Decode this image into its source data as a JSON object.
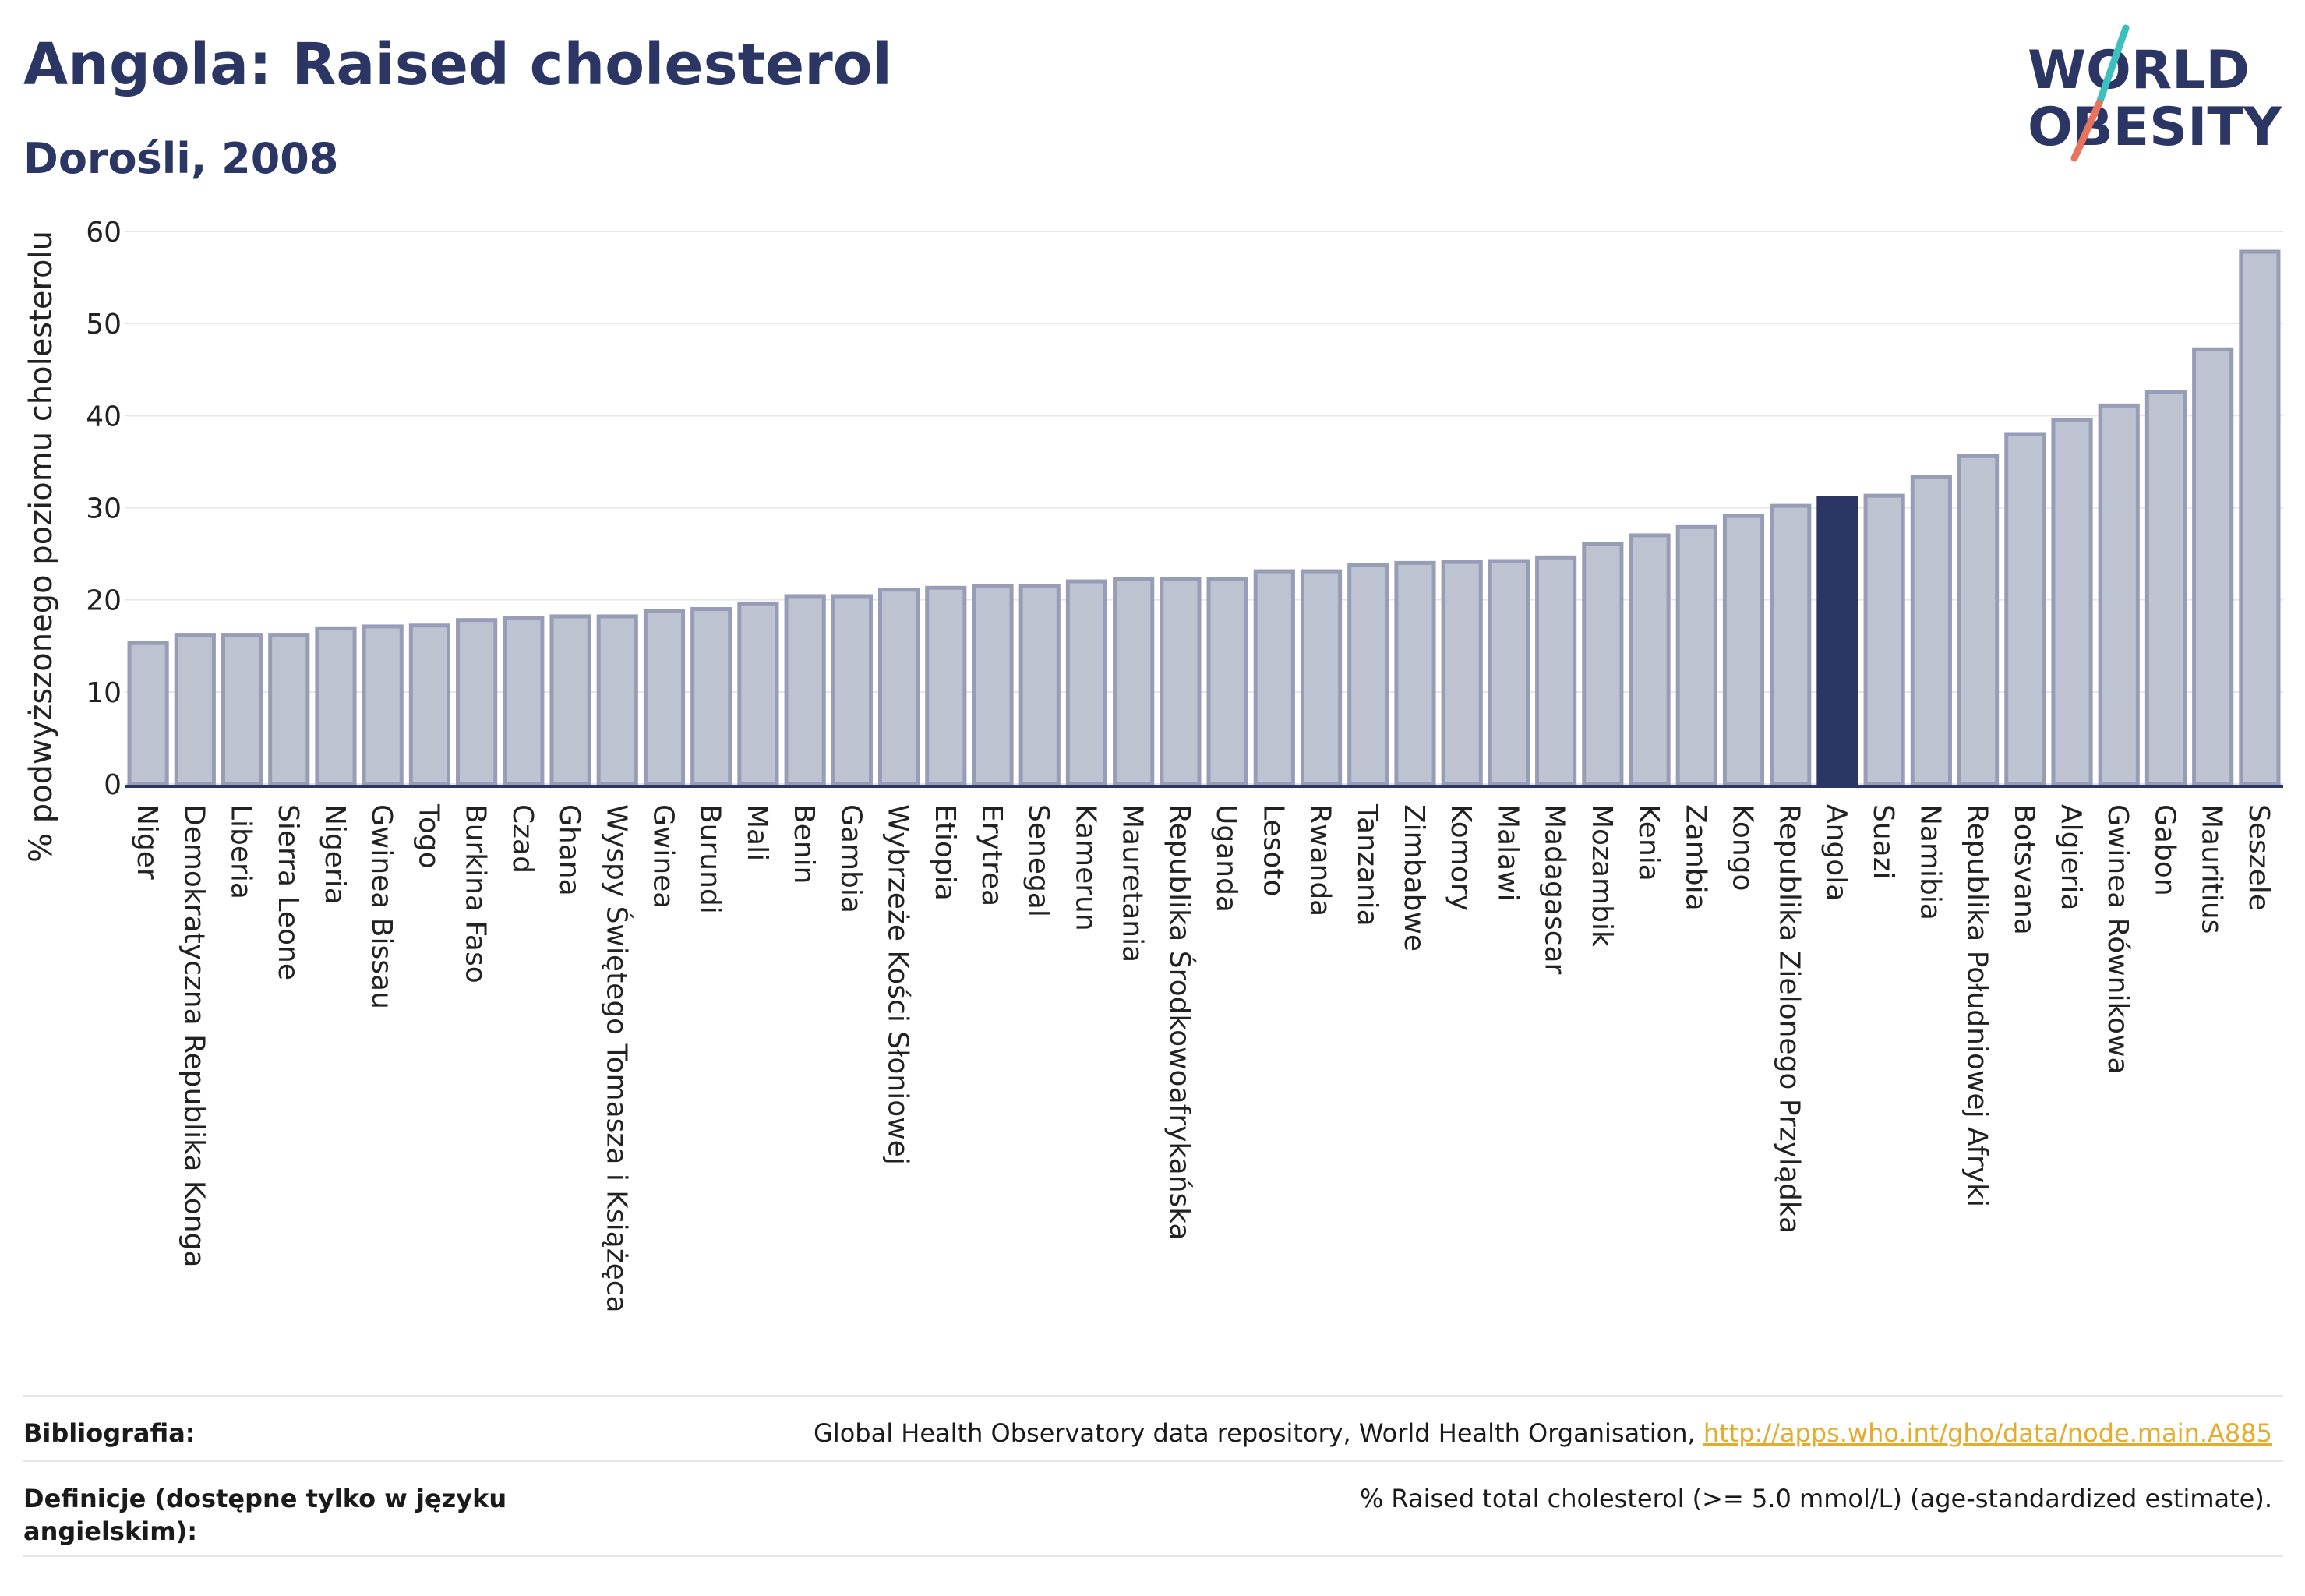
{
  "title": "Angola: Raised cholesterol",
  "subtitle": "Dorośli, 2008",
  "logo": {
    "line1": "WORLD",
    "line2": "OBESITY",
    "colors": [
      "#2b3664",
      "#3dbfbf",
      "#e8735e"
    ]
  },
  "colors": {
    "bar": "#bec3d2",
    "bar_border": "#979db6",
    "highlight": "#2b3664",
    "grid": "#e6e6e6",
    "title": "#2b3664",
    "link": "#e3ac2e"
  },
  "chart_data": {
    "type": "bar",
    "title": "Angola: Raised cholesterol",
    "subtitle": "Dorośli, 2008",
    "ylabel": "% podwyższonego poziomu cholesterolu",
    "xlabel": "",
    "ylim": [
      0,
      60
    ],
    "yticks": [
      0,
      10,
      20,
      30,
      40,
      50,
      60
    ],
    "grid": true,
    "highlight": "Angola",
    "categories": [
      "Niger",
      "Demokratyczna Republika Konga",
      "Liberia",
      "Sierra Leone",
      "Nigeria",
      "Gwinea Bissau",
      "Togo",
      "Burkina Faso",
      "Czad",
      "Ghana",
      "Wyspy Świętego Tomasza i Książęca",
      "Gwinea",
      "Burundi",
      "Mali",
      "Benin",
      "Gambia",
      "Wybrzeże Kości Słoniowej",
      "Etiopia",
      "Erytrea",
      "Senegal",
      "Kamerun",
      "Mauretania",
      "Republika Środkowoafrykańska",
      "Uganda",
      "Lesoto",
      "Rwanda",
      "Tanzania",
      "Zimbabwe",
      "Komory",
      "Malawi",
      "Madagascar",
      "Mozambik",
      "Kenia",
      "Zambia",
      "Kongo",
      "Republika Zielonego Przylądka",
      "Angola",
      "Suazi",
      "Namibia",
      "Republika Południowej Afryki",
      "Botsvana",
      "Algieria",
      "Gwinea Równikowa",
      "Gabon",
      "Mauritius",
      "Seszele"
    ],
    "values": [
      15.3,
      16.2,
      16.2,
      16.2,
      16.9,
      17.1,
      17.2,
      17.8,
      18.0,
      18.2,
      18.2,
      18.8,
      19.0,
      19.6,
      20.4,
      20.4,
      21.1,
      21.3,
      21.5,
      21.5,
      22.0,
      22.3,
      22.3,
      22.3,
      23.1,
      23.1,
      23.8,
      24.0,
      24.1,
      24.2,
      24.6,
      26.1,
      27.0,
      27.9,
      29.1,
      30.2,
      31.1,
      31.3,
      33.3,
      35.6,
      38.0,
      39.5,
      41.1,
      42.6,
      47.2,
      57.8
    ]
  },
  "footer": {
    "bibliography_label": "Bibliografia:",
    "bibliography_text": "Global Health Observatory data repository, World Health Organisation, ",
    "bibliography_link": "http://apps.who.int/gho/data/node.main.A885",
    "definition_label": "Definicje (dostępne tylko w języku angielskim):",
    "definition_text": "% Raised total cholesterol (>= 5.0 mmol/L) (age-standardized estimate)."
  }
}
